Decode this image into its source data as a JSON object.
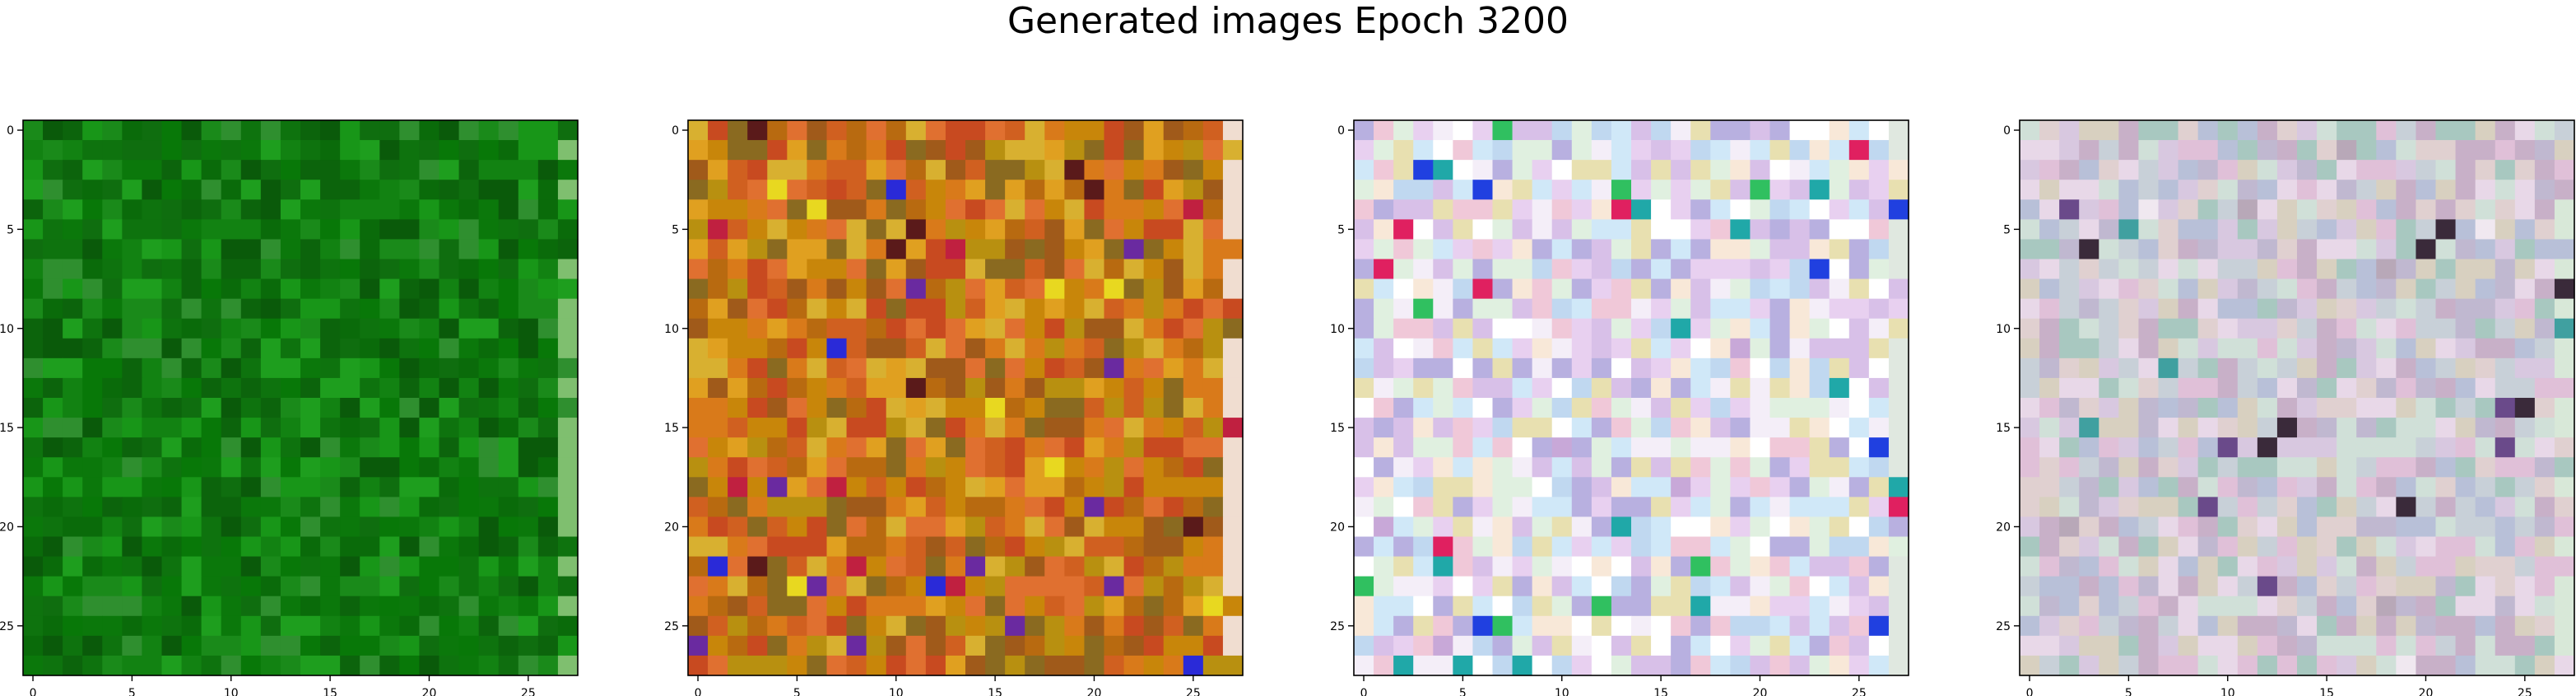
{
  "figure": {
    "title": "Generated images Epoch 3200"
  },
  "chart_data": {
    "type": "heatmap",
    "title": "Generated images Epoch 3200",
    "description_note": "Four 28x28 pixel-grid generated images shown with matplotlib imshow axes; pixel colours are noisy GAN outputs.",
    "grid_size": 28,
    "panels": [
      {
        "name": "image-1",
        "palette_name": "green",
        "palette": [
          "#0a5a0a",
          "#0f6e0f",
          "#128212",
          "#0b780b",
          "#189618",
          "#0c640c",
          "#1a8a1a",
          "#0e730e",
          "#2f8f2f",
          "#087808",
          "#1e9e1e",
          "#0a6b0a"
        ],
        "xlim": [
          -0.5,
          27.5
        ],
        "ylim": [
          27.5,
          -0.5
        ],
        "xticks": [
          0,
          5,
          10,
          15,
          20,
          25
        ],
        "yticks": [
          0,
          5,
          10,
          15,
          20,
          25
        ]
      },
      {
        "name": "image-2",
        "palette_name": "warm",
        "palette": [
          "#c8860a",
          "#d97a1a",
          "#b86a10",
          "#e0a020",
          "#a05a1a",
          "#c84a20",
          "#d8b030",
          "#8a6a20",
          "#e07030",
          "#b89010",
          "#d06020",
          "#2a2ad8",
          "#6a2aa0",
          "#c02040",
          "#e8d820",
          "#5a1a1a"
        ],
        "xlim": [
          -0.5,
          27.5
        ],
        "ylim": [
          27.5,
          -0.5
        ],
        "xticks": [
          0,
          5,
          10,
          15,
          20,
          25
        ],
        "yticks": [
          0,
          5,
          10,
          15,
          20,
          25
        ]
      },
      {
        "name": "image-3",
        "palette_name": "pastel",
        "palette": [
          "#f4eef8",
          "#e8d0f0",
          "#c0d8f0",
          "#f8e8d8",
          "#d8c0e8",
          "#e0f0e0",
          "#b8b0e0",
          "#f0c8d8",
          "#ffffff",
          "#d0e8f8",
          "#e8e0b0",
          "#c8a8d8",
          "#30c060",
          "#2040e0",
          "#e02060",
          "#20a8a8"
        ],
        "xlim": [
          -0.5,
          27.5
        ],
        "ylim": [
          27.5,
          -0.5
        ],
        "xticks": [
          0,
          5,
          10,
          15,
          20,
          25
        ],
        "yticks": [
          0,
          5,
          10,
          15,
          20,
          25
        ]
      },
      {
        "name": "image-4",
        "palette_name": "muted-pastel",
        "palette": [
          "#d8c8e0",
          "#c8d0d8",
          "#e0d0d0",
          "#b8c0d8",
          "#d0e0d8",
          "#e8d8e8",
          "#c0b8d0",
          "#d8d0c0",
          "#a8c8c0",
          "#e0c0d8",
          "#c8b0c8",
          "#f0e8f0",
          "#3a2a3a",
          "#6a4a8a",
          "#40a0a0",
          "#b8a8b8"
        ],
        "xlim": [
          -0.5,
          27.5
        ],
        "ylim": [
          27.5,
          -0.5
        ],
        "xticks": [
          0,
          5,
          10,
          15,
          20,
          25
        ],
        "yticks": [
          0,
          5,
          10,
          15,
          20,
          25
        ]
      }
    ]
  }
}
